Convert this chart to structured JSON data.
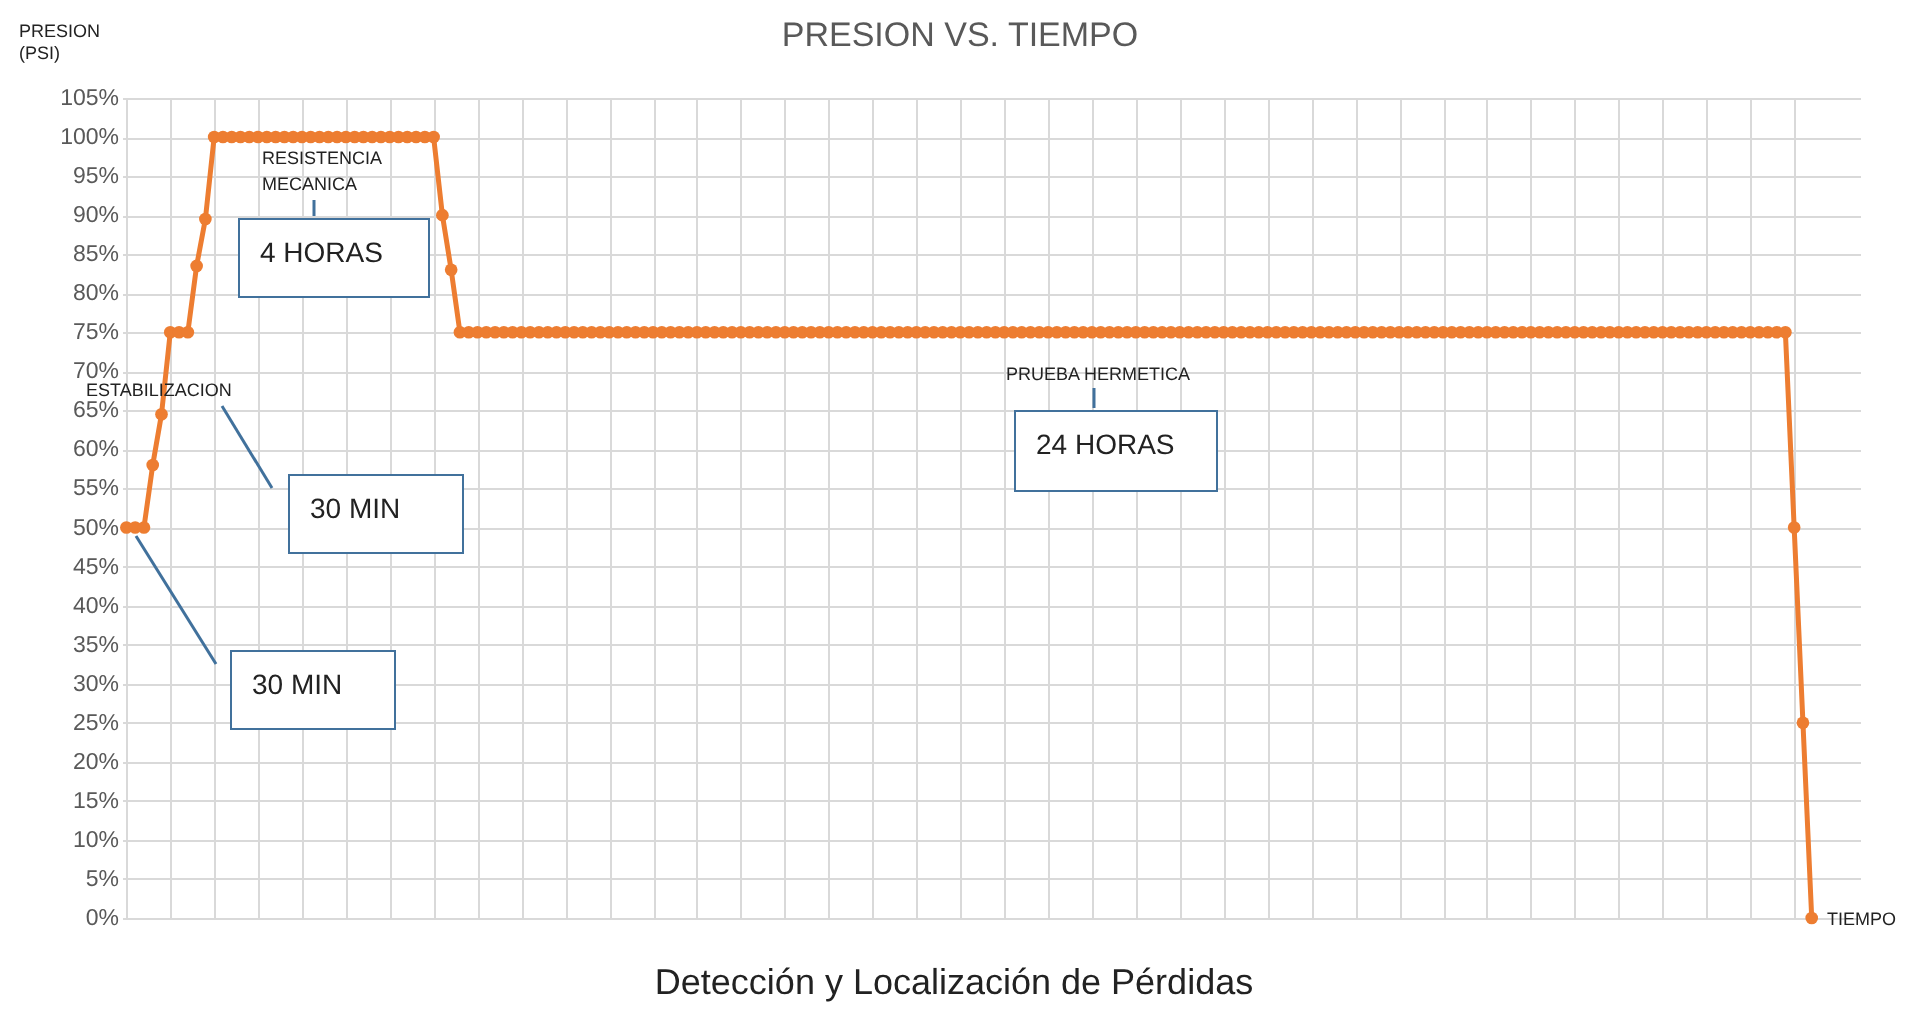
{
  "chart_data": {
    "type": "line",
    "title": "PRESION VS. TIEMPO",
    "ylabel": "PRESION (PSI)",
    "xlabel": "TIEMPO",
    "annotations": [
      "RESISTENCIA MECANICA",
      "4 HORAS",
      "ESTABILIZACION",
      "30 MIN",
      "30 MIN",
      "PRUEBA HERMETICA",
      "24 HORAS",
      "Detección y Localización de Pérdidas"
    ],
    "categories": [
      null,
      null,
      null,
      null,
      null,
      null,
      null,
      null,
      null,
      null,
      null,
      null,
      null,
      null,
      null,
      null,
      null,
      null,
      null,
      null,
      null,
      null,
      null,
      null,
      null,
      null,
      null,
      null,
      null,
      null,
      null,
      null,
      null,
      null,
      null,
      null,
      null,
      null,
      null,
      null,
      null,
      null,
      null,
      null,
      null,
      null,
      null,
      null,
      null,
      null,
      null,
      null,
      null,
      null,
      null,
      null,
      null,
      null,
      null,
      null,
      null,
      null,
      null,
      null,
      null,
      null,
      null,
      null,
      null,
      null,
      null,
      null,
      null,
      null,
      null,
      null,
      null,
      null,
      null,
      null,
      null,
      null,
      null,
      null,
      null,
      null,
      null,
      null,
      null,
      null,
      null,
      null,
      null,
      null,
      null,
      null,
      null,
      null,
      null,
      null,
      null,
      null,
      null,
      null,
      null,
      null,
      null,
      null,
      null,
      null,
      null,
      null,
      null,
      null,
      null,
      null,
      null,
      null,
      null,
      null,
      null,
      null,
      null,
      null,
      null,
      null,
      null,
      null,
      null,
      null,
      null,
      null,
      null,
      null,
      null,
      null,
      null,
      null,
      null,
      null,
      null,
      null,
      null,
      null,
      null,
      null,
      null,
      null,
      null,
      null,
      null,
      null,
      null,
      null,
      null,
      null,
      null,
      null,
      null,
      null,
      null,
      null,
      null,
      null,
      null,
      null,
      null,
      null,
      null,
      null,
      null,
      null,
      null,
      null,
      null,
      null,
      null,
      null,
      null,
      null,
      null,
      null,
      null,
      null,
      null,
      null,
      null,
      null,
      null,
      null,
      null,
      null,
      null
    ],
    "values": [
      50,
      50,
      50,
      58,
      64.5,
      75,
      75,
      75,
      83.5,
      89.5,
      100,
      100,
      100,
      100,
      100,
      100,
      100,
      100,
      100,
      100,
      100,
      100,
      100,
      100,
      100,
      100,
      100,
      100,
      100,
      100,
      100,
      100,
      100,
      100,
      100,
      100,
      90,
      83,
      75,
      75,
      75,
      75,
      75,
      75,
      75,
      75,
      75,
      75,
      75,
      75,
      75,
      75,
      75,
      75,
      75,
      75,
      75,
      75,
      75,
      75,
      75,
      75,
      75,
      75,
      75,
      75,
      75,
      75,
      75,
      75,
      75,
      75,
      75,
      75,
      75,
      75,
      75,
      75,
      75,
      75,
      75,
      75,
      75,
      75,
      75,
      75,
      75,
      75,
      75,
      75,
      75,
      75,
      75,
      75,
      75,
      75,
      75,
      75,
      75,
      75,
      75,
      75,
      75,
      75,
      75,
      75,
      75,
      75,
      75,
      75,
      75,
      75,
      75,
      75,
      75,
      75,
      75,
      75,
      75,
      75,
      75,
      75,
      75,
      75,
      75,
      75,
      75,
      75,
      75,
      75,
      75,
      75,
      75,
      75,
      75,
      75,
      75,
      75,
      75,
      75,
      75,
      75,
      75,
      75,
      75,
      75,
      75,
      75,
      75,
      75,
      75,
      75,
      75,
      75,
      75,
      75,
      75,
      75,
      75,
      75,
      75,
      75,
      75,
      75,
      75,
      75,
      75,
      75,
      75,
      75,
      75,
      75,
      75,
      75,
      75,
      75,
      75,
      75,
      75,
      75,
      75,
      75,
      75,
      75,
      75,
      75,
      75,
      75,
      75,
      75,
      50,
      25,
      0
    ],
    "color": "#ed7d31",
    "marker": "circle",
    "grid": true,
    "tick_labels": "y",
    "ylim": [
      0,
      105
    ],
    "yticks": [
      {
        "value": 0,
        "label": "0%"
      },
      {
        "value": 5,
        "label": "5%"
      },
      {
        "value": 10,
        "label": "10%"
      },
      {
        "value": 15,
        "label": "15%"
      },
      {
        "value": 20,
        "label": "20%"
      },
      {
        "value": 25,
        "label": "25%"
      },
      {
        "value": 30,
        "label": "30%"
      },
      {
        "value": 35,
        "label": "35%"
      },
      {
        "value": 40,
        "label": "40%"
      },
      {
        "value": 45,
        "label": "45%"
      },
      {
        "value": 50,
        "label": "50%"
      },
      {
        "value": 55,
        "label": "55%"
      },
      {
        "value": 60,
        "label": "60%"
      },
      {
        "value": 65,
        "label": "65%"
      },
      {
        "value": 70,
        "label": "70%"
      },
      {
        "value": 75,
        "label": "75%"
      },
      {
        "value": 80,
        "label": "80%"
      },
      {
        "value": 85,
        "label": "85%"
      },
      {
        "value": 90,
        "label": "90%"
      },
      {
        "value": 95,
        "label": "95%"
      },
      {
        "value": 100,
        "label": "100%"
      },
      {
        "value": 105,
        "label": "105%"
      }
    ]
  }
}
